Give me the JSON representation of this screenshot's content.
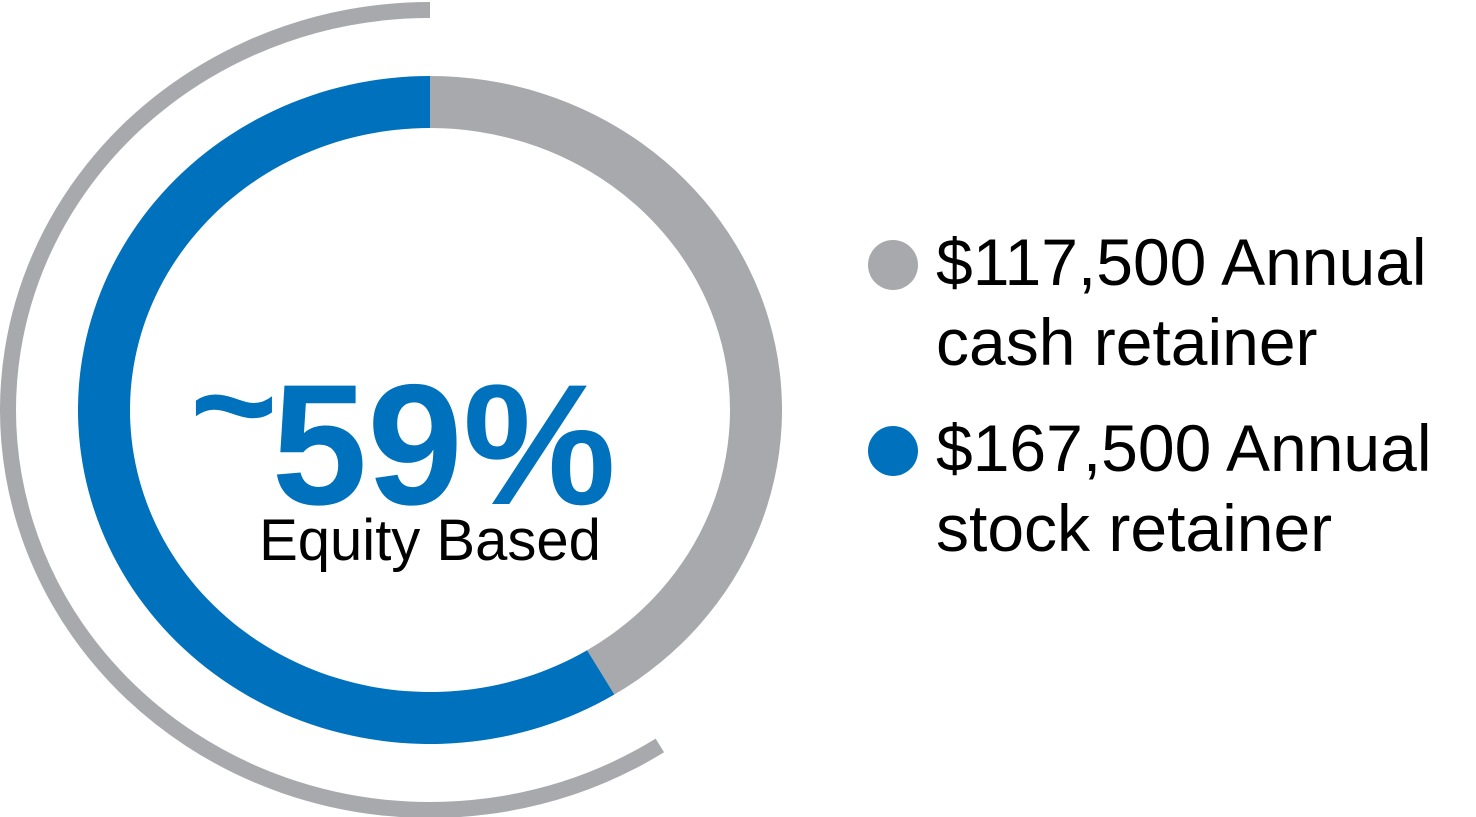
{
  "chart_data": {
    "type": "pie",
    "style": "donut",
    "slices": [
      {
        "label": "$117,500 Annual cash retainer",
        "amount": 117500,
        "color": "#a7a9ac"
      },
      {
        "label": "$167,500 Annual stock retainer",
        "amount": 167500,
        "color": "#0071bc"
      }
    ],
    "center_value": "59%",
    "center_prefix": "~",
    "center_label": "Equity Based",
    "legend_placement": "right"
  },
  "legend": [
    {
      "line1": "$117,500 Annual",
      "line2": "cash retainer",
      "color": "#a7a9ac"
    },
    {
      "line1": "$167,500 Annual",
      "line2": "stock retainer",
      "color": "#0071bc"
    }
  ]
}
